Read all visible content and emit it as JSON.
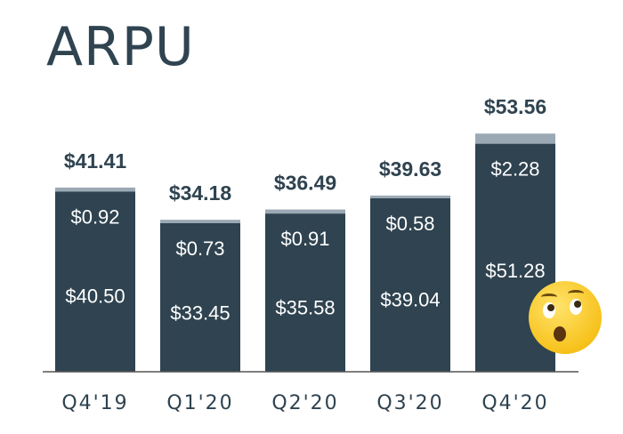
{
  "title": "ARPU",
  "chart_data": {
    "type": "bar",
    "stacked": true,
    "title": "ARPU",
    "categories": [
      "Q4'19",
      "Q1'20",
      "Q2'20",
      "Q3'20",
      "Q4'20"
    ],
    "totals": [
      "$41.41",
      "$34.18",
      "$36.49",
      "$39.63",
      "$53.56"
    ],
    "series": [
      {
        "values": [
          40.5,
          33.45,
          35.58,
          39.04,
          51.28
        ],
        "labels": [
          "$40.50",
          "$33.45",
          "$35.58",
          "$39.04",
          "$51.28"
        ],
        "color": "#2f4350"
      },
      {
        "values": [
          0.92,
          0.73,
          0.91,
          0.58,
          2.28
        ],
        "labels": [
          "$0.92",
          "$0.73",
          "$0.91",
          "$0.58",
          "$2.28"
        ],
        "color": "#9aa9b4"
      }
    ],
    "ylim": [
      0,
      55
    ],
    "grid": false
  },
  "decoration": {
    "emoji": "surprised-face-icon"
  }
}
